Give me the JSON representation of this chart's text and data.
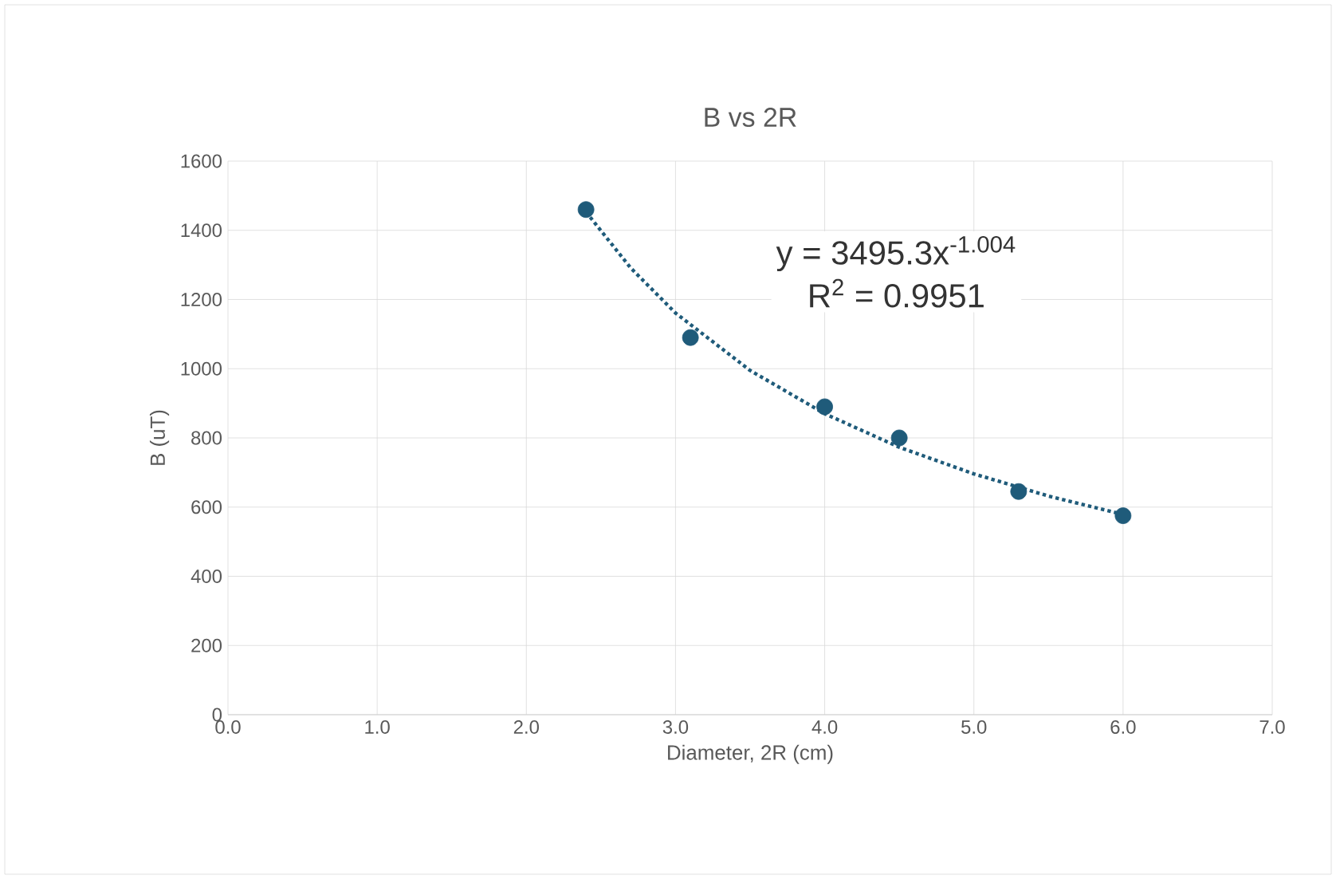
{
  "chart_data": {
    "type": "scatter",
    "title": "B vs 2R",
    "xlabel": "Diameter, 2R (cm)",
    "ylabel": "B (uT)",
    "xlim": [
      0,
      7
    ],
    "ylim": [
      0,
      1600
    ],
    "xticks": [
      {
        "value": 0,
        "label": "0.0"
      },
      {
        "value": 1,
        "label": "1.0"
      },
      {
        "value": 2,
        "label": "2.0"
      },
      {
        "value": 3,
        "label": "3.0"
      },
      {
        "value": 4,
        "label": "4.0"
      },
      {
        "value": 5,
        "label": "5.0"
      },
      {
        "value": 6,
        "label": "6.0"
      },
      {
        "value": 7,
        "label": "7.0"
      }
    ],
    "yticks": [
      0,
      200,
      400,
      600,
      800,
      1000,
      1200,
      1400,
      1600
    ],
    "grid": true,
    "marker": "circle",
    "series": [
      {
        "color": "#1f5b7a",
        "x": [
          2.4,
          3.1,
          4.0,
          4.5,
          5.3,
          6.0
        ],
        "values": [
          1460,
          1090,
          890,
          800,
          645,
          575
        ]
      },
      {
        "type": "line",
        "color": "#1f5b7a",
        "line_style": "dotted",
        "marker": "none",
        "x": [
          2.4,
          2.7,
          3.0,
          3.5,
          4.0,
          4.5,
          5.0,
          5.5,
          6.0
        ],
        "values": [
          1453,
          1291,
          1161,
          995,
          870,
          773,
          696,
          632,
          579
        ]
      }
    ],
    "annotations": [
      "y = 3495.3x$^{-1.004}$",
      "R$^{2}$ = 0.9951"
    ]
  }
}
